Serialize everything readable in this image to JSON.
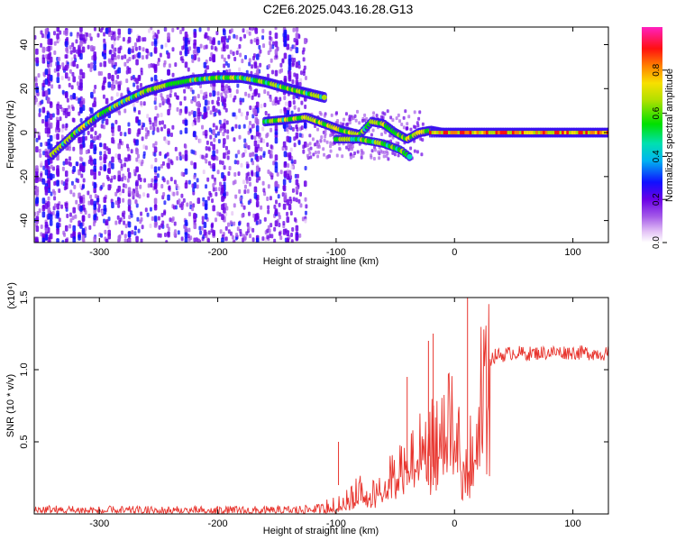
{
  "title": "C2E6.2025.043.16.28.G13",
  "chart_data": [
    {
      "type": "heatmap",
      "xlabel": "Height of straight line (km)",
      "ylabel": "Frequency (Hz)",
      "xlim": [
        -355,
        130
      ],
      "ylim": [
        -50,
        48
      ],
      "xticks": [
        -300,
        -200,
        -100,
        0,
        100
      ],
      "yticks": [
        -40,
        -20,
        0,
        20,
        40
      ],
      "colorbar": {
        "label": "Normalized spectral amplitude",
        "range": [
          0,
          1
        ],
        "ticks": [
          0.0,
          0.2,
          0.4,
          0.6,
          0.8
        ]
      },
      "ridge_main": {
        "x": [
          -340,
          -320,
          -300,
          -280,
          -260,
          -240,
          -220,
          -200,
          -180,
          -160,
          -140,
          -125,
          -110
        ],
        "y": [
          -10,
          0,
          8,
          14,
          19,
          22,
          24,
          25,
          25,
          23,
          20,
          18,
          16
        ]
      },
      "ridge_lower": {
        "x": [
          -160,
          -140,
          -125,
          -110,
          -95,
          -80,
          -70,
          -60,
          -50,
          -40,
          -30,
          -20,
          -10,
          0,
          20,
          50,
          80,
          100,
          130
        ],
        "y": [
          5,
          6,
          7,
          4,
          1,
          -1,
          5,
          4,
          0,
          -3,
          0,
          1,
          0,
          0,
          0,
          0,
          0,
          0,
          0
        ]
      },
      "ridge_branch": {
        "x": [
          -100,
          -80,
          -60,
          -45,
          -38
        ],
        "y": [
          -3,
          -3,
          -5,
          -8,
          -11
        ]
      }
    },
    {
      "type": "line",
      "xlabel": "Height of straight line (km)",
      "ylabel": "SNR (10 * v/v)",
      "y_multiplier": "(x10⁴)",
      "xlim": [
        -355,
        130
      ],
      "ylim": [
        0,
        1.5
      ],
      "xticks": [
        -300,
        -200,
        -100,
        0,
        100
      ],
      "yticks": [
        0.5,
        1.0,
        1.5
      ],
      "series": [
        {
          "color": "#e8352e",
          "x": [
            -355,
            -300,
            -250,
            -200,
            -150,
            -120,
            -100,
            -90,
            -80,
            -70,
            -60,
            -50,
            -40,
            -30,
            -20,
            -10,
            -5,
            0,
            5,
            10,
            12,
            15,
            20,
            25,
            30,
            35,
            40,
            50,
            60,
            80,
            100,
            130
          ],
          "y": [
            0.03,
            0.02,
            0.02,
            0.02,
            0.02,
            0.03,
            0.05,
            0.1,
            0.17,
            0.15,
            0.22,
            0.3,
            0.38,
            0.48,
            0.55,
            0.62,
            0.7,
            0.65,
            0.55,
            0.35,
            0.4,
            0.78,
            0.92,
            1.02,
            1.07,
            1.1,
            1.1,
            1.12,
            1.11,
            1.12,
            1.12,
            1.11
          ]
        }
      ],
      "spikes": [
        {
          "x": -98,
          "y": 0.5
        },
        {
          "x": -40,
          "y": 0.95
        },
        {
          "x": -22,
          "y": 1.2
        },
        {
          "x": -18,
          "y": 1.25
        },
        {
          "x": 11,
          "y": 1.5
        }
      ]
    }
  ]
}
